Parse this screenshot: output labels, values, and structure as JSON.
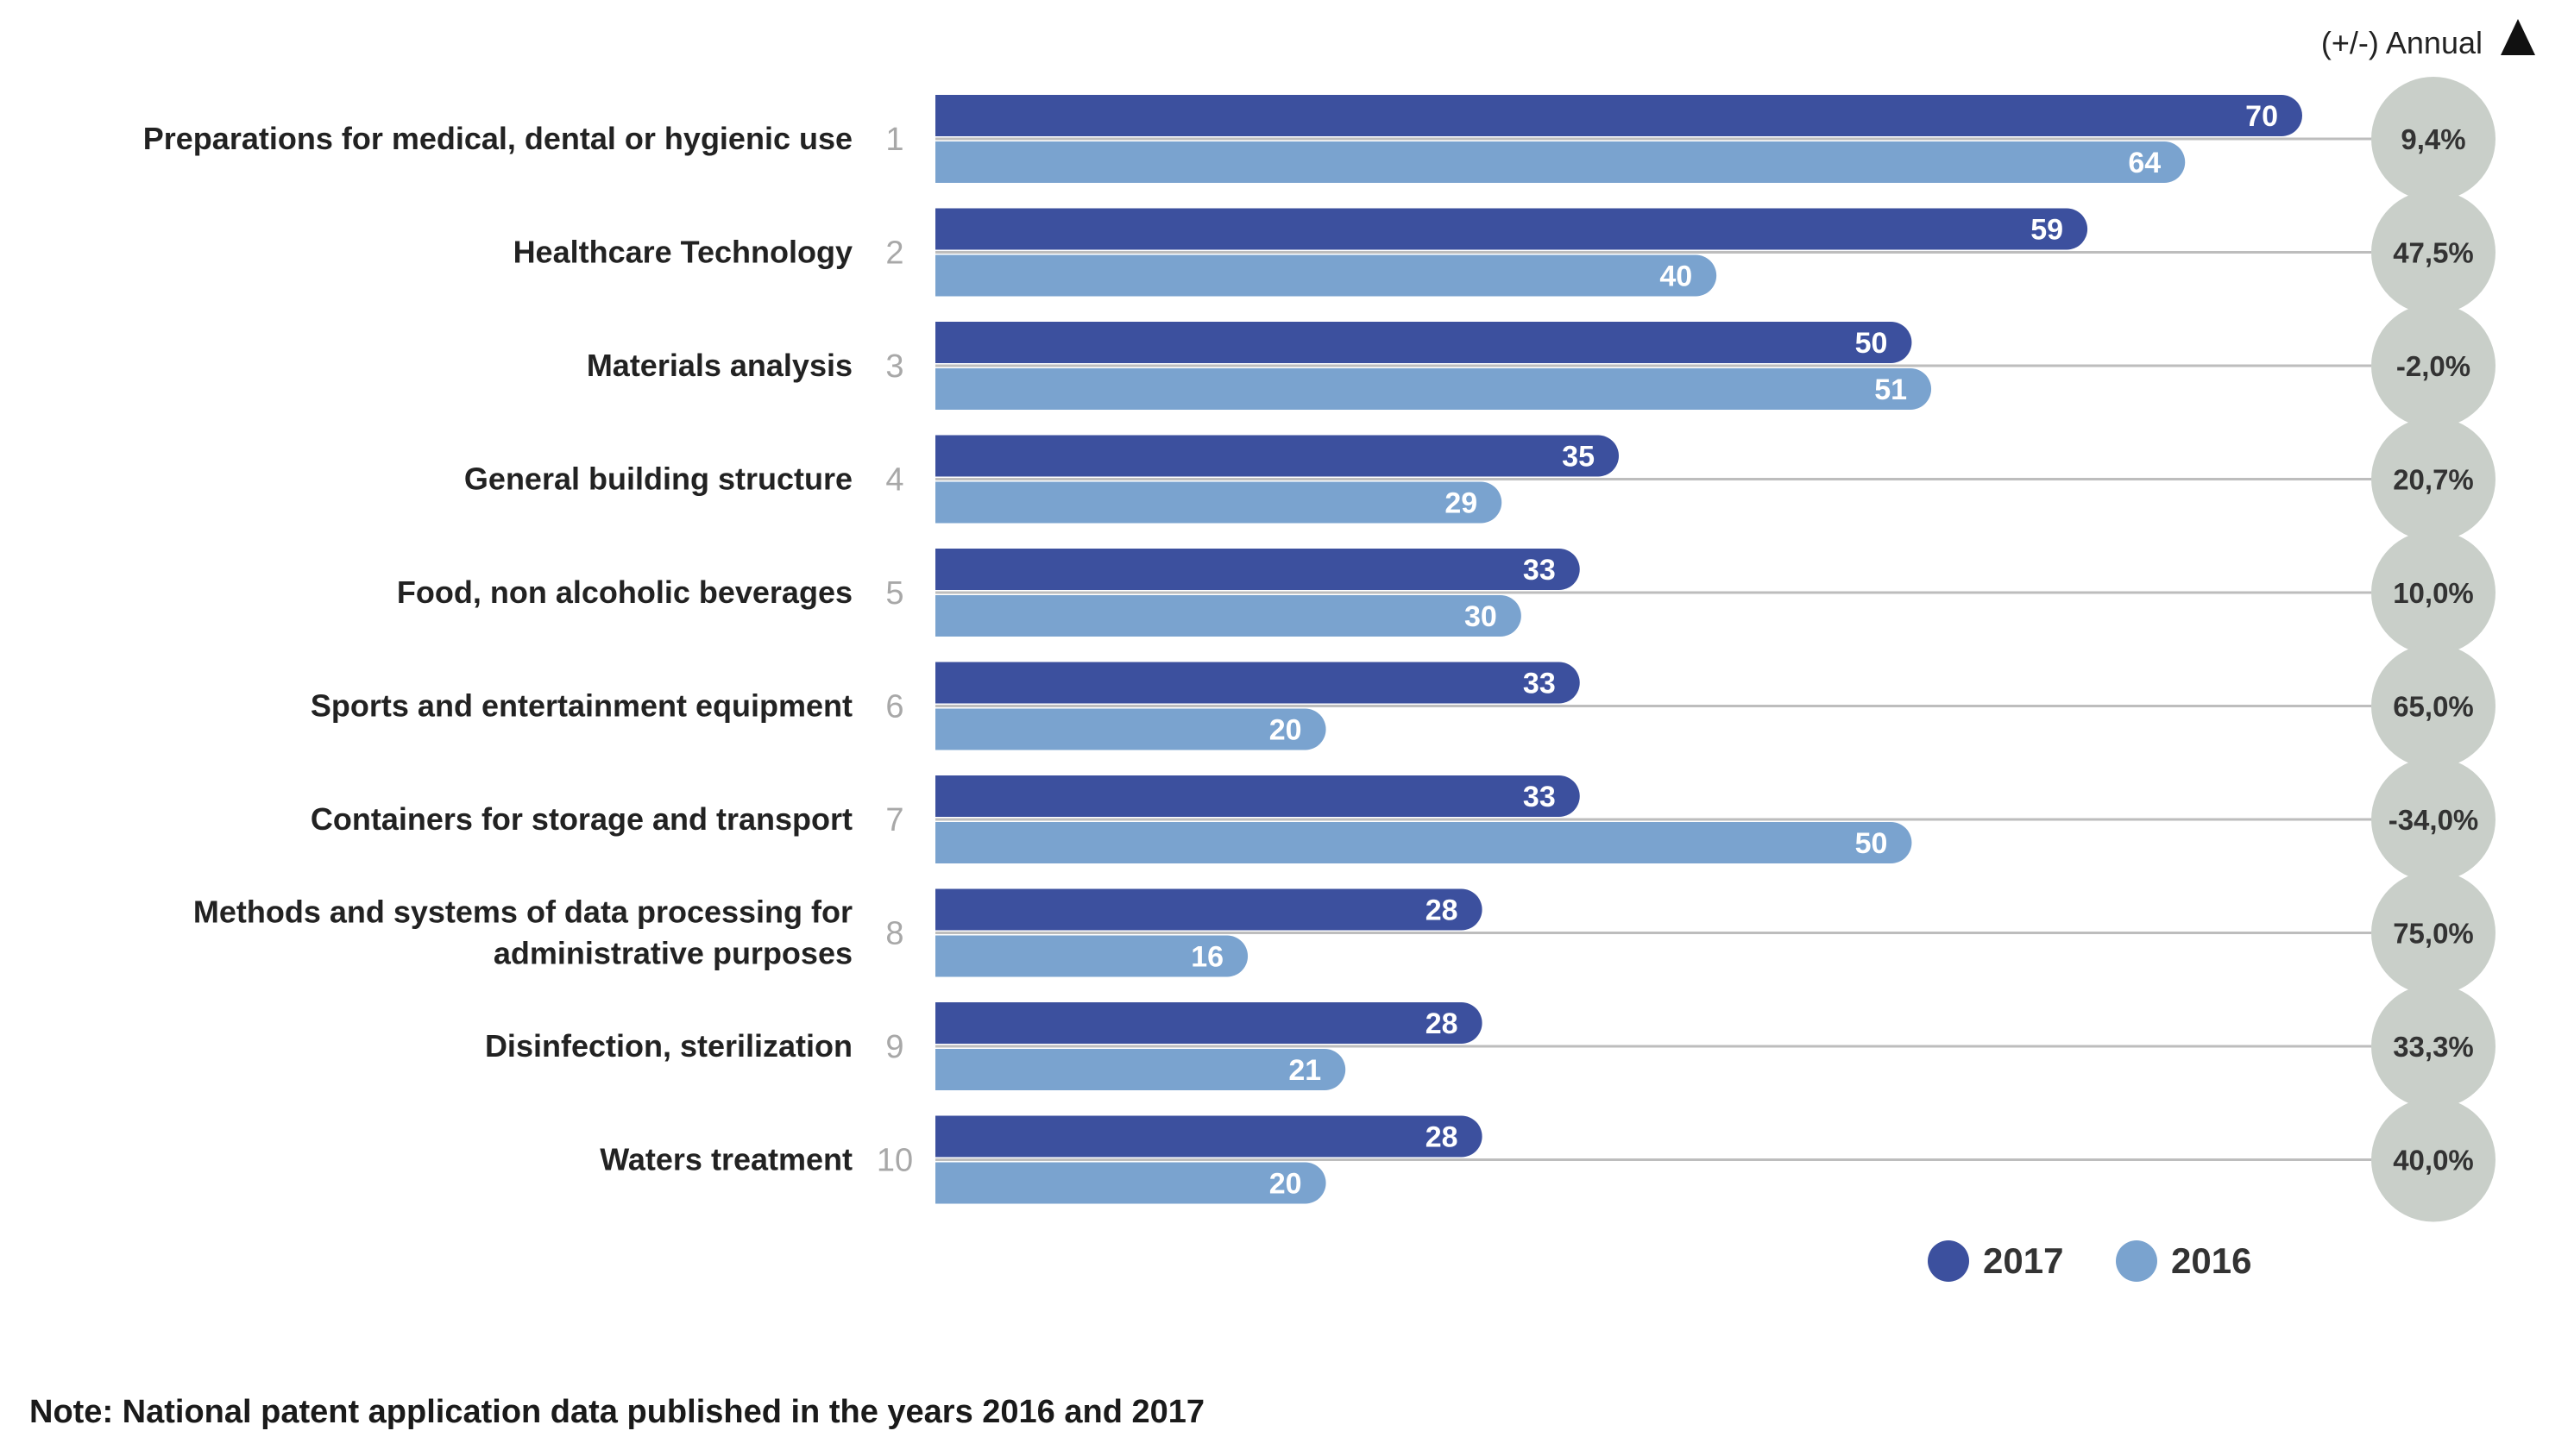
{
  "chart_data": {
    "type": "bar",
    "orientation": "horizontal",
    "header": "(+/-) Annual",
    "categories": [
      "Preparations for medical, dental or hygienic use",
      "Healthcare Technology",
      "Materials analysis",
      "General building structure",
      "Food, non alcoholic beverages",
      "Sports and entertainment equipment",
      "Containers for storage and transport",
      "Methods and systems of data processing for administrative purposes",
      "Disinfection, sterilization",
      "Waters treatment"
    ],
    "category_lines": [
      [
        "Preparations for medical, dental or hygienic use"
      ],
      [
        "Healthcare Technology"
      ],
      [
        "Materials analysis"
      ],
      [
        "General building structure"
      ],
      [
        "Food, non alcoholic beverages"
      ],
      [
        "Sports and entertainment equipment"
      ],
      [
        "Containers for storage and transport"
      ],
      [
        "Methods and systems of data processing for",
        "administrative purposes"
      ],
      [
        "Disinfection, sterilization"
      ],
      [
        "Waters treatment"
      ]
    ],
    "ranks": [
      "1",
      "2",
      "3",
      "4",
      "5",
      "6",
      "7",
      "8",
      "9",
      "10"
    ],
    "series": [
      {
        "name": "2017",
        "color": "#3c509e",
        "values": [
          70,
          59,
          50,
          35,
          33,
          33,
          33,
          28,
          28,
          28
        ]
      },
      {
        "name": "2016",
        "color": "#7aa3cf",
        "values": [
          64,
          40,
          51,
          29,
          30,
          20,
          50,
          16,
          21,
          20
        ]
      }
    ],
    "annual_change": [
      "9,4%",
      "47,5%",
      "-2,0%",
      "20,7%",
      "10,0%",
      "65,0%",
      "-34,0%",
      "75,0%",
      "33,3%",
      "40,0%"
    ],
    "xlim": [
      0,
      70
    ],
    "legend": "bottom-right",
    "grid": false
  },
  "colors": {
    "circle": "#c9cfc9",
    "leader": "#bdbdbd",
    "label": "#222222",
    "rank": "#a8a8a8"
  },
  "note": "Note: National patent application data published in the years 2016 and 2017"
}
